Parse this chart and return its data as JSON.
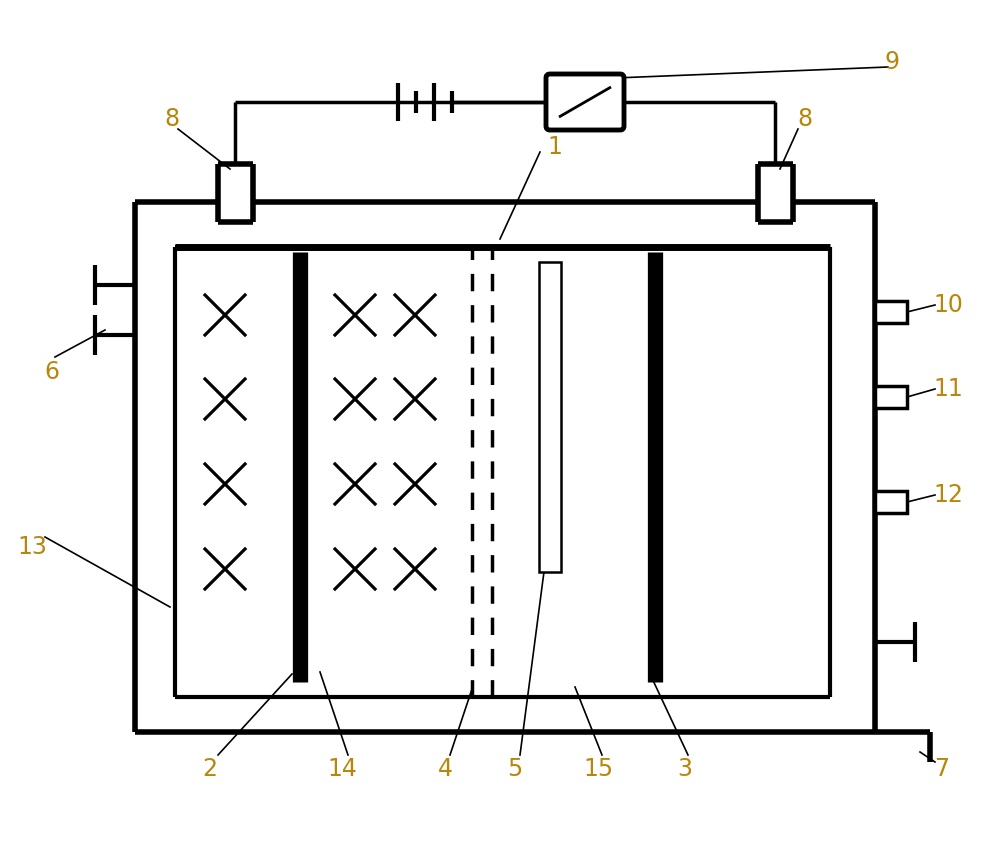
{
  "fig_width": 10.0,
  "fig_height": 8.57,
  "dpi": 100,
  "line_color": "black",
  "lw": 2.5,
  "label_color": "#b8860b",
  "label_fontsize": 17,
  "bg_color": "white",
  "outer_lw": 4.0,
  "inner_lw": 3.0,
  "elec_lw": 11,
  "leader_lw": 1.2
}
